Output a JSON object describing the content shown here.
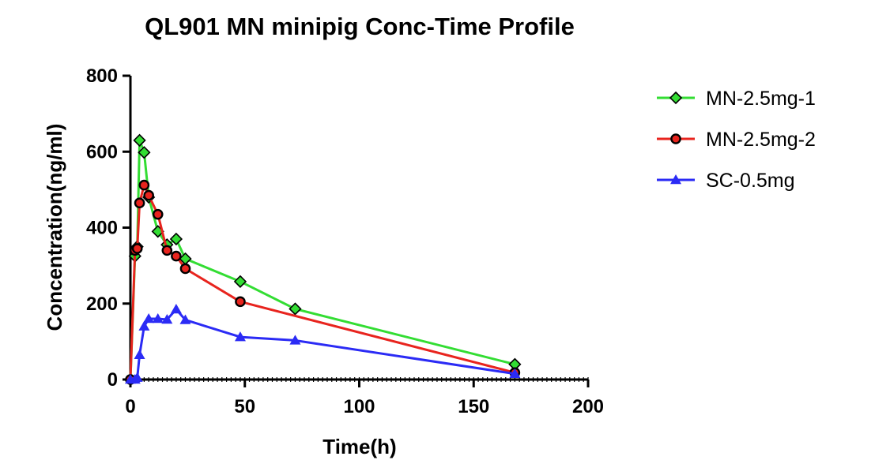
{
  "chart_data": {
    "type": "line",
    "title": "QL901 MN minipig Conc-Time Profile",
    "xlabel": "Time(h)",
    "ylabel": "Concentration(ng/ml)",
    "xlim": [
      0,
      200
    ],
    "ylim": [
      0,
      800
    ],
    "xticks": [
      0,
      50,
      100,
      150,
      200
    ],
    "yticks": [
      0,
      200,
      400,
      600,
      800
    ],
    "grid": false,
    "legend_position": "right",
    "series": [
      {
        "name": "MN-2.5mg-1",
        "color": "#33dd33",
        "marker": "diamond",
        "x": [
          0,
          2,
          3,
          4,
          6,
          8,
          12,
          16,
          20,
          24,
          48,
          72,
          168
        ],
        "y": [
          0,
          325,
          350,
          630,
          598,
          480,
          390,
          355,
          370,
          318,
          258,
          186,
          40
        ]
      },
      {
        "name": "MN-2.5mg-2",
        "color": "#e8241e",
        "marker": "circle",
        "x": [
          0,
          2,
          3,
          4,
          6,
          8,
          12,
          16,
          20,
          24,
          48,
          168
        ],
        "y": [
          0,
          340,
          345,
          465,
          512,
          485,
          435,
          340,
          325,
          292,
          205,
          18
        ]
      },
      {
        "name": "SC-0.5mg",
        "color": "#2b2bf5",
        "marker": "triangle",
        "x": [
          0,
          2,
          3,
          4,
          6,
          8,
          12,
          16,
          20,
          24,
          48,
          72,
          168
        ],
        "y": [
          0,
          0,
          5,
          65,
          140,
          160,
          160,
          158,
          185,
          157,
          112,
          103,
          15
        ]
      }
    ]
  }
}
